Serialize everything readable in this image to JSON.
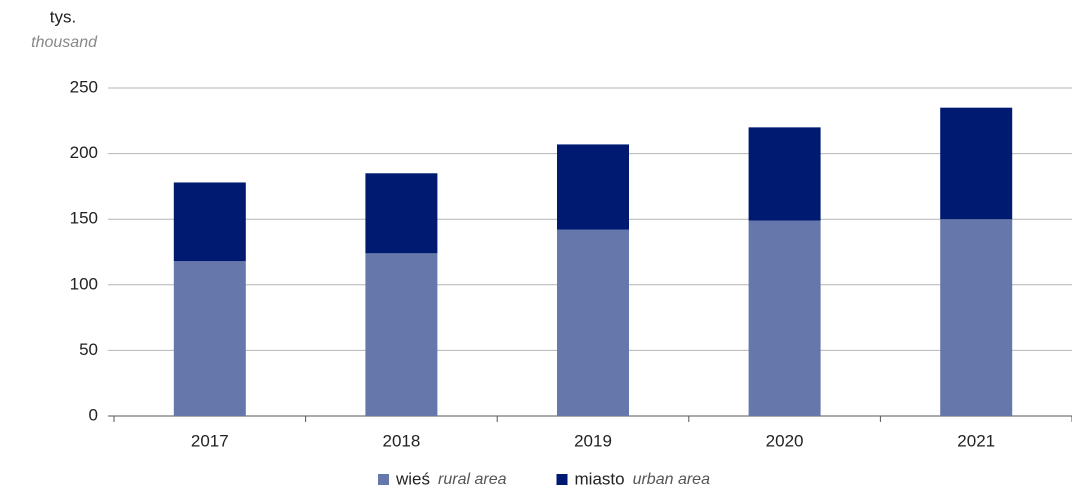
{
  "chart_data": {
    "type": "stacked_bar",
    "y_unit": "tys.",
    "y_unit_en": "thousand",
    "categories": [
      "2017",
      "2018",
      "2019",
      "2020",
      "2021"
    ],
    "series": [
      {
        "name": "wieś",
        "name_en": "rural area",
        "color": "#6677ab",
        "values": [
          118,
          124,
          142,
          149,
          150
        ]
      },
      {
        "name": "miasto",
        "name_en": "urban area",
        "color": "#001a72",
        "values": [
          60,
          61,
          65,
          71,
          85
        ]
      }
    ],
    "ylim": [
      0,
      250
    ],
    "yticks": [
      0,
      50,
      100,
      150,
      200,
      250
    ],
    "grid": true,
    "legend": "bottom"
  }
}
